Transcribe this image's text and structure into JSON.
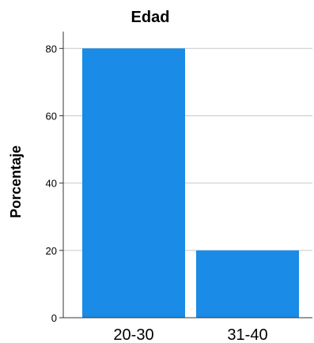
{
  "chart_data": {
    "type": "bar",
    "title": "Edad",
    "xlabel": "",
    "ylabel": "Porcentaje",
    "categories": [
      "20-30",
      "31-40"
    ],
    "values": [
      80,
      20
    ],
    "ylim": [
      0,
      85
    ],
    "yticks": [
      "0",
      "20",
      "40",
      "60",
      "80"
    ],
    "grid": true,
    "bar_color": "#1a8be6",
    "legend": "none"
  }
}
